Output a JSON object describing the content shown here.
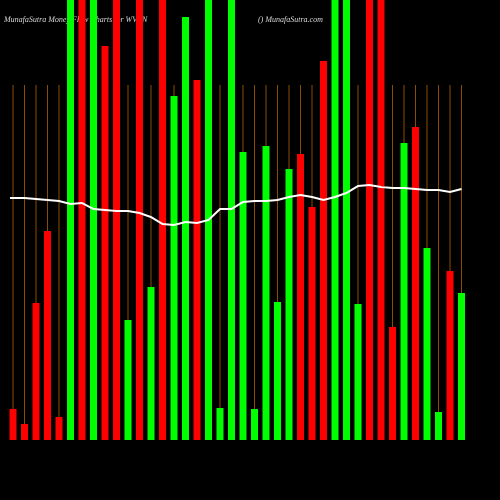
{
  "chart_data": {
    "type": "bar",
    "title": "MunafaSutra  Money Flow  Charts for WVBN",
    "subtitle": "() MunafaSutra.com",
    "categories": [
      null,
      null,
      null,
      null,
      null,
      null,
      null,
      null,
      null,
      null,
      null,
      null,
      null,
      null,
      null,
      null,
      null,
      null,
      null,
      null,
      null,
      null,
      null,
      null,
      null,
      null,
      null,
      null,
      null,
      null,
      null,
      null,
      null,
      null,
      null,
      null,
      null,
      null,
      null,
      null
    ],
    "values": [
      31,
      16,
      137,
      209,
      23,
      440,
      440,
      440,
      394,
      440,
      120,
      440,
      153,
      440,
      344,
      423,
      360,
      440,
      32,
      440,
      288,
      31,
      294,
      138,
      271,
      286,
      233,
      379,
      440,
      440,
      136,
      440,
      440,
      113,
      297,
      313,
      192,
      28,
      169,
      147
    ],
    "colors": [
      "#f00",
      "#f00",
      "#f00",
      "#f00",
      "#f00",
      "#0f0",
      "#f00",
      "#0f0",
      "#f00",
      "#f00",
      "#0f0",
      "#f00",
      "#0f0",
      "#f00",
      "#0f0",
      "#0f0",
      "#f00",
      "#0f0",
      "#0f0",
      "#0f0",
      "#0f0",
      "#0f0",
      "#0f0",
      "#0f0",
      "#0f0",
      "#f00",
      "#f00",
      "#f00",
      "#0f0",
      "#0f0",
      "#0f0",
      "#f00",
      "#f00",
      "#f00",
      "#0f0",
      "#f00",
      "#0f0",
      "#0f0",
      "#f00",
      "#0f0"
    ],
    "line": {
      "color": "#fff",
      "values": [
        242,
        242,
        241,
        240,
        239,
        236,
        237,
        231,
        230,
        229,
        229,
        227,
        223,
        216,
        215,
        218,
        217,
        220,
        231,
        231,
        238,
        239,
        239,
        240,
        243,
        245,
        243,
        240,
        243,
        247,
        254,
        255,
        253,
        252,
        252,
        251,
        250,
        250,
        248,
        251
      ]
    },
    "ylim": [
      0,
      440
    ],
    "grid": true,
    "grid_color": "#b06000"
  }
}
